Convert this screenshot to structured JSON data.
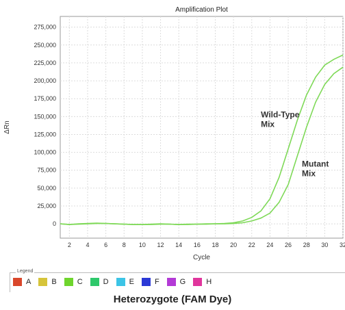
{
  "chart_data": {
    "type": "line",
    "title": "Amplification Plot",
    "xlabel": "Cycle",
    "ylabel": "ΔRn",
    "xlim": [
      1,
      32
    ],
    "ylim": [
      -20000,
      290000
    ],
    "x_ticks": [
      2,
      4,
      6,
      8,
      10,
      12,
      14,
      16,
      18,
      20,
      22,
      24,
      26,
      28,
      30,
      32
    ],
    "y_ticks": [
      0,
      25000,
      50000,
      75000,
      100000,
      125000,
      150000,
      175000,
      200000,
      225000,
      250000,
      275000
    ],
    "y_tick_labels": [
      "0",
      "25,000",
      "50,000",
      "75,000",
      "100,000",
      "125,000",
      "150,000",
      "175,000",
      "200,000",
      "225,000",
      "250,000",
      "275,000"
    ],
    "grid": true,
    "line_color": "#7ed957",
    "series": [
      {
        "name": "Wild-Type Mix",
        "x": [
          1,
          2,
          3,
          4,
          5,
          6,
          7,
          8,
          9,
          10,
          11,
          12,
          13,
          14,
          15,
          16,
          17,
          18,
          19,
          20,
          21,
          22,
          23,
          24,
          25,
          26,
          27,
          28,
          29,
          30,
          31,
          32
        ],
        "values": [
          0,
          -1000,
          0,
          500,
          1000,
          500,
          0,
          -500,
          -1000,
          -1000,
          -500,
          0,
          -500,
          -1000,
          -500,
          -500,
          0,
          0,
          500,
          1500,
          4000,
          9000,
          18000,
          35000,
          65000,
          105000,
          145000,
          180000,
          205000,
          222000,
          230000,
          236000
        ]
      },
      {
        "name": "Mutant Mix",
        "x": [
          1,
          2,
          3,
          4,
          5,
          6,
          7,
          8,
          9,
          10,
          11,
          12,
          13,
          14,
          15,
          16,
          17,
          18,
          19,
          20,
          21,
          22,
          23,
          24,
          25,
          26,
          27,
          28,
          29,
          30,
          31,
          32
        ],
        "values": [
          0,
          -1000,
          -500,
          0,
          500,
          500,
          0,
          -500,
          -1000,
          -1000,
          -1000,
          -500,
          -500,
          -1000,
          -1000,
          -500,
          -500,
          0,
          0,
          500,
          1500,
          4000,
          8000,
          15000,
          30000,
          55000,
          95000,
          135000,
          170000,
          195000,
          210000,
          219000
        ]
      }
    ],
    "annotations": [
      {
        "text": [
          "Wild-Type",
          "Mix"
        ],
        "x": 23.0,
        "y": 149000
      },
      {
        "text": [
          "Mutant",
          "Mix"
        ],
        "x": 27.5,
        "y": 80000
      }
    ]
  },
  "legend": {
    "title": "Legend",
    "items": [
      {
        "label": "A",
        "color": "#d9472b"
      },
      {
        "label": "B",
        "color": "#d6c43a"
      },
      {
        "label": "C",
        "color": "#6fd52d"
      },
      {
        "label": "D",
        "color": "#2ec86b"
      },
      {
        "label": "E",
        "color": "#3cc4e6"
      },
      {
        "label": "F",
        "color": "#2b39d6"
      },
      {
        "label": "G",
        "color": "#b33ad6"
      },
      {
        "label": "H",
        "color": "#e0359c"
      }
    ]
  },
  "caption": "Heterozygote (FAM Dye)"
}
